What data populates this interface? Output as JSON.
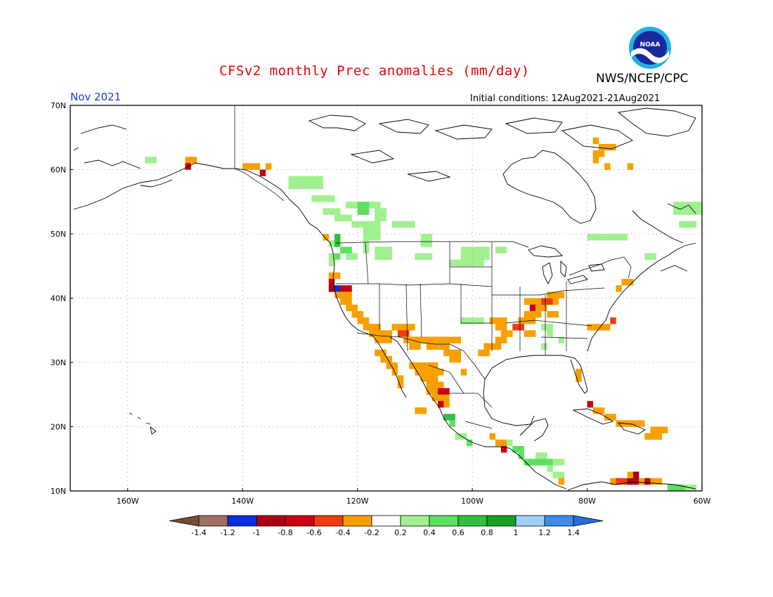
{
  "header": {
    "title": "CFSv2 monthly Prec anomalies (mm/day)",
    "agency": "NWS/NCEP/CPC",
    "logo_text": "NOAA",
    "month": "Nov 2021",
    "initial_conditions": "Initial conditions: 12Aug2021-21Aug2021"
  },
  "axes": {
    "lat_ticks": [
      {
        "value": 70,
        "label": "70N"
      },
      {
        "value": 60,
        "label": "60N"
      },
      {
        "value": 50,
        "label": "50N"
      },
      {
        "value": 40,
        "label": "40N"
      },
      {
        "value": 30,
        "label": "30N"
      },
      {
        "value": 20,
        "label": "20N"
      },
      {
        "value": 10,
        "label": "10N"
      }
    ],
    "lon_ticks": [
      {
        "value": -160,
        "label": "160W"
      },
      {
        "value": -140,
        "label": "140W"
      },
      {
        "value": -120,
        "label": "120W"
      },
      {
        "value": -100,
        "label": "100W"
      },
      {
        "value": -80,
        "label": "80W"
      },
      {
        "value": -60,
        "label": "60W"
      }
    ],
    "lon_range": [
      -170,
      -60
    ],
    "lat_range": [
      10,
      70
    ]
  },
  "colorbar": {
    "colors": [
      "#a07060",
      "#0b2de0",
      "#a80012",
      "#c80012",
      "#f03a10",
      "#f8a000",
      "#ffffff",
      "#a0f090",
      "#5ce060",
      "#30c040",
      "#14a020",
      "#a0d0f8",
      "#3c8ce8"
    ],
    "under_color": "#7a4a3a",
    "over_color": "#2070d8",
    "labels": [
      "-1.4",
      "-1.2",
      "-1",
      "-0.8",
      "-0.6",
      "-0.4",
      "-0.2",
      "0.2",
      "0.4",
      "0.6",
      "0.8",
      "1",
      "1.2",
      "1.4"
    ]
  },
  "anomaly_colors": {
    "orange": "#f8a000",
    "red_orange": "#f03a10",
    "red": "#c80012",
    "dark_red": "#a80012",
    "blue": "#0b2de0",
    "light_green": "#a0f090",
    "green": "#5ce060",
    "dark_green": "#30c040"
  }
}
